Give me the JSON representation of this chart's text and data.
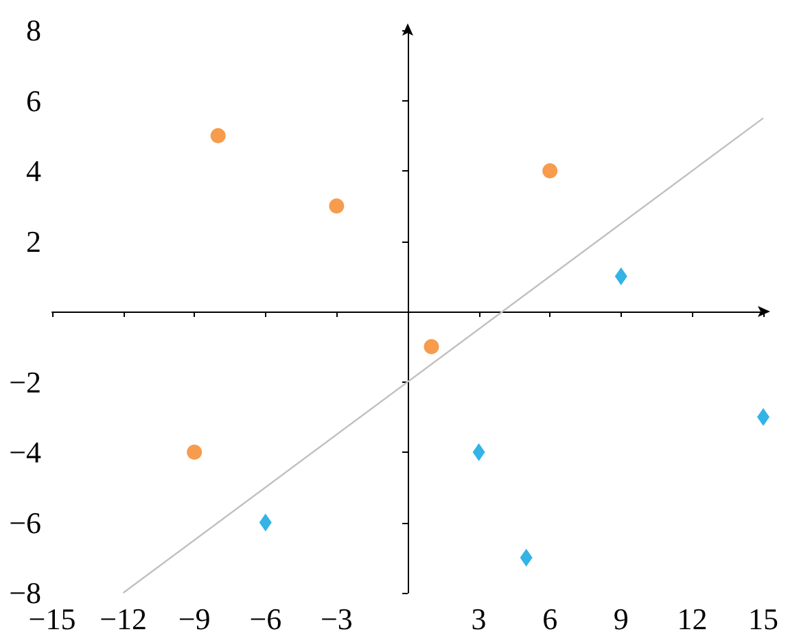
{
  "chart_data": {
    "type": "scatter",
    "xlim": [
      -15,
      15
    ],
    "ylim": [
      -8,
      8
    ],
    "xticks": [
      -15,
      -12,
      -9,
      -6,
      -3,
      3,
      6,
      9,
      12,
      15
    ],
    "yticks": [
      -8,
      -6,
      -4,
      -2,
      2,
      4,
      6,
      8
    ],
    "grid": false,
    "series": [
      {
        "color": "#f58220",
        "marker": "circle",
        "x": [
          -8,
          -3,
          6,
          1,
          -9
        ],
        "values": [
          5,
          3,
          4,
          -1,
          -4
        ]
      },
      {
        "color": "#00a0e0",
        "marker": "diamond",
        "x": [
          9,
          15,
          3,
          5,
          -6
        ],
        "values": [
          1,
          -3,
          -4,
          -7,
          -6
        ]
      },
      {
        "type": "line",
        "color": "#c0c0c0",
        "marker": "none",
        "x": [
          -12,
          15
        ],
        "values": [
          -8,
          5.5
        ]
      }
    ]
  }
}
